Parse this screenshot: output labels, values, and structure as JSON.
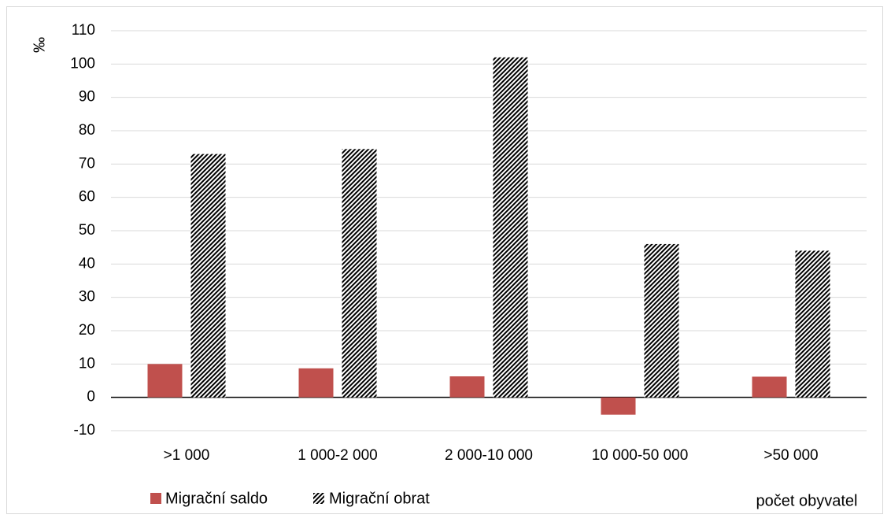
{
  "chart_data": {
    "type": "bar",
    "title": "",
    "ylabel": "‰",
    "xlabel": "počet obyvatel",
    "categories": [
      ">1 000",
      "1 000-2 000",
      "2 000-10 000",
      "10 000-50 000",
      ">50 000"
    ],
    "series": [
      {
        "name": "Migrační saldo",
        "values": [
          10,
          8.7,
          6.3,
          -5.2,
          6.2
        ],
        "color": "#c0504d",
        "pattern": "solid"
      },
      {
        "name": "Migrační obrat",
        "values": [
          73,
          74.5,
          102,
          46,
          44
        ],
        "color": "#000000",
        "pattern": "diagonal-hatch"
      }
    ],
    "ylim": [
      -10,
      110
    ],
    "yticks": [
      -10,
      0,
      10,
      20,
      30,
      40,
      50,
      60,
      70,
      80,
      90,
      100,
      110
    ],
    "grid": true,
    "legend_position": "bottom-left"
  }
}
